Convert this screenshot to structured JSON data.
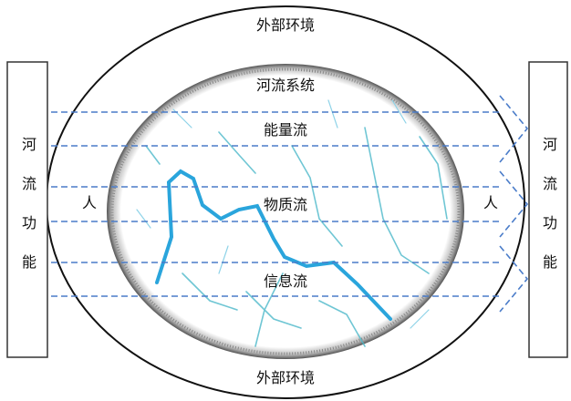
{
  "outer_environment_top": "外部环境",
  "river_system": "河流系统",
  "flows": [
    "能量流",
    "物质流",
    "信息流"
  ],
  "people": {
    "left": "人",
    "right": "人"
  },
  "outer_environment_bottom": "外部环境",
  "river_function": {
    "left": "河流功能",
    "right": "河流功能"
  }
}
